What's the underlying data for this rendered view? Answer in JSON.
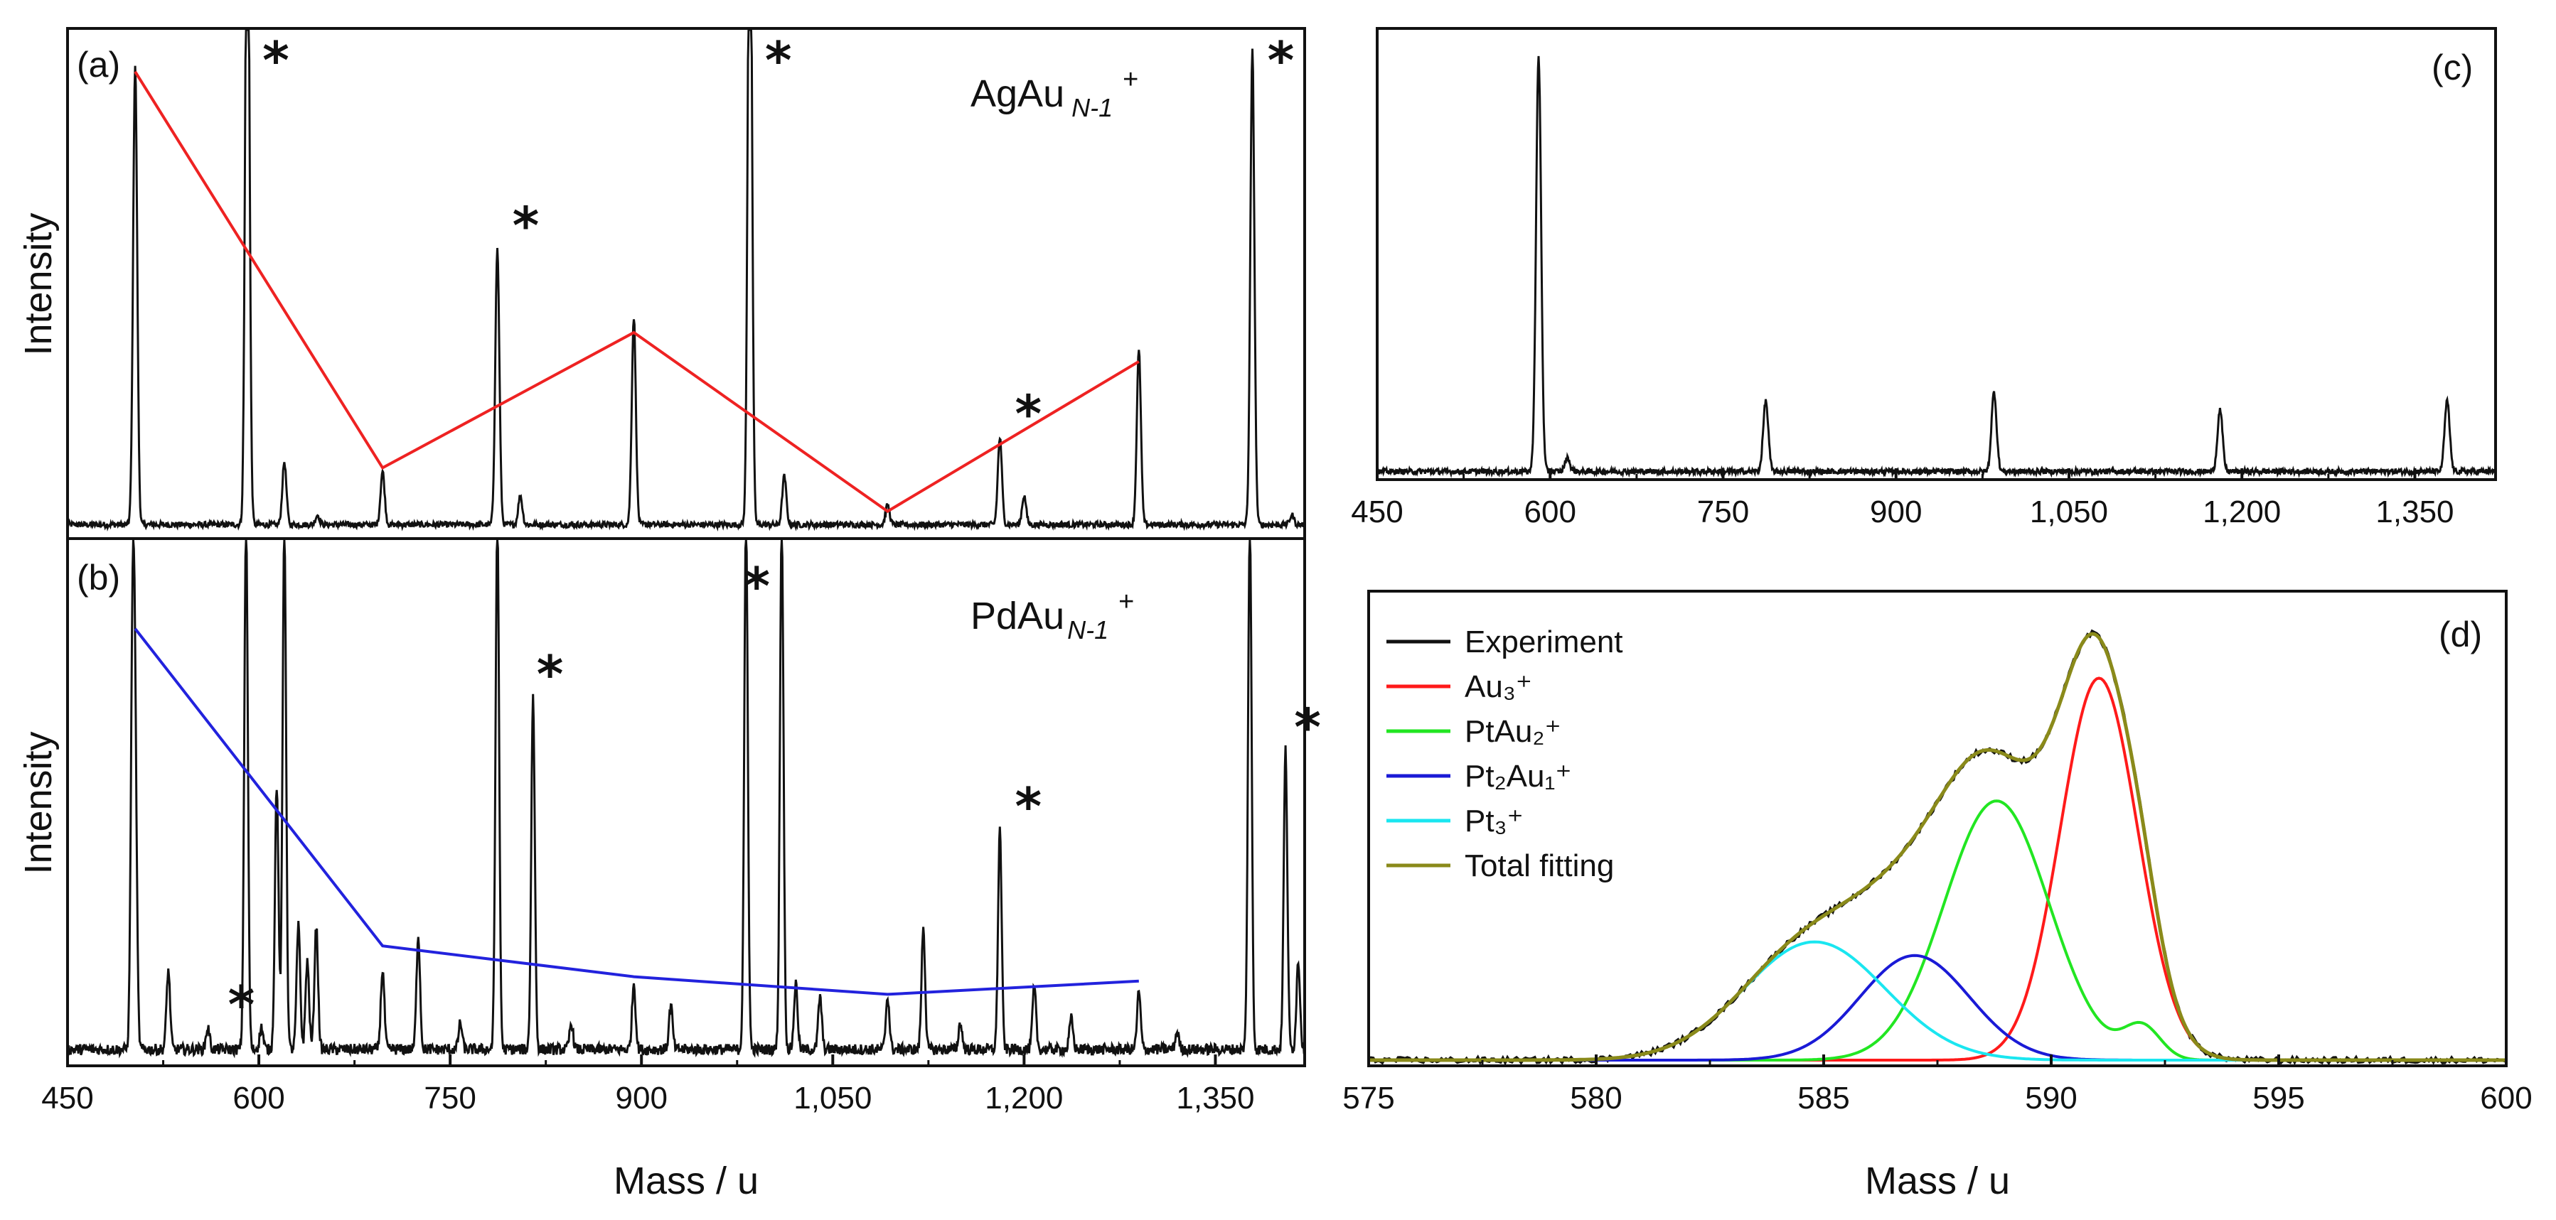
{
  "chart_data": [
    {
      "panel": "(a)",
      "type": "line",
      "title": "AgAu N-1 +",
      "ylabel": "Intensity",
      "xlabel": "",
      "xlim": [
        450,
        1420
      ],
      "ylim": [
        0,
        1
      ],
      "series": [
        {
          "name": "mass spectrum",
          "color": "#111111",
          "peaks": [
            [
              503,
              0.95
            ],
            [
              591,
              1.5
            ],
            [
              620,
              0.13
            ],
            [
              646,
              0.02
            ],
            [
              697,
              0.11
            ],
            [
              787,
              0.57
            ],
            [
              805,
              0.06
            ],
            [
              894,
              0.43
            ],
            [
              985,
              1.5
            ],
            [
              1012,
              0.1
            ],
            [
              1093,
              0.04
            ],
            [
              1181,
              0.18
            ],
            [
              1200,
              0.06
            ],
            [
              1290,
              0.36
            ],
            [
              1379,
              0.98
            ],
            [
              1410,
              0.02
            ]
          ]
        },
        {
          "name": "trend",
          "color": "#ee2222",
          "x": [
            503,
            697,
            894,
            1093,
            1290
          ],
          "y": [
            0.94,
            0.12,
            0.4,
            0.03,
            0.34
          ]
        }
      ],
      "stars": [
        {
          "x": 591,
          "label": "*"
        },
        {
          "x": 787,
          "label": "*"
        },
        {
          "x": 985,
          "label": "*"
        },
        {
          "x": 1181,
          "label": "*"
        },
        {
          "x": 1379,
          "label": "*"
        }
      ]
    },
    {
      "panel": "(b)",
      "type": "line",
      "title": "PdAu N-1 +",
      "ylabel": "Intensity",
      "xlabel": "Mass / u",
      "xlim": [
        450,
        1420
      ],
      "ylim": [
        0,
        1
      ],
      "xticks": [
        "450",
        "600",
        "750",
        "900",
        "1,050",
        "1,200",
        "1,350"
      ],
      "xtick_values": [
        450,
        600,
        750,
        900,
        1050,
        1200,
        1350
      ],
      "series": [
        {
          "name": "mass spectrum",
          "color": "#111111",
          "peaks": [
            [
              501,
              0.88
            ],
            [
              503,
              0.6
            ],
            [
              529,
              0.18
            ],
            [
              560,
              0.05
            ],
            [
              590,
              1.2
            ],
            [
              602,
              0.05
            ],
            [
              614,
              0.6
            ],
            [
              620,
              1.2
            ],
            [
              631,
              0.28
            ],
            [
              638,
              0.2
            ],
            [
              645,
              0.28
            ],
            [
              697,
              0.18
            ],
            [
              725,
              0.26
            ],
            [
              758,
              0.06
            ],
            [
              787,
              1.2
            ],
            [
              815,
              0.8
            ],
            [
              845,
              0.06
            ],
            [
              894,
              0.15
            ],
            [
              923,
              0.1
            ],
            [
              982,
              1.2
            ],
            [
              1010,
              1.2
            ],
            [
              1021,
              0.15
            ],
            [
              1040,
              0.12
            ],
            [
              1093,
              0.12
            ],
            [
              1121,
              0.28
            ],
            [
              1150,
              0.06
            ],
            [
              1181,
              0.5
            ],
            [
              1208,
              0.14
            ],
            [
              1237,
              0.07
            ],
            [
              1290,
              0.13
            ],
            [
              1320,
              0.04
            ],
            [
              1377,
              1.2
            ],
            [
              1405,
              0.68
            ],
            [
              1415,
              0.2
            ]
          ]
        },
        {
          "name": "trend",
          "color": "#2222dd",
          "x": [
            503,
            697,
            894,
            1093,
            1290
          ],
          "y": [
            0.96,
            0.24,
            0.17,
            0.13,
            0.16
          ]
        }
      ],
      "stars": [
        {
          "x": 564,
          "label": "*"
        },
        {
          "x": 806,
          "label": "*"
        },
        {
          "x": 968,
          "label": "*"
        },
        {
          "x": 1181,
          "label": "*"
        },
        {
          "x": 1400,
          "label": "*"
        }
      ]
    },
    {
      "panel": "(c)",
      "type": "line",
      "title": "",
      "ylabel": "",
      "xlabel": "",
      "xlim": [
        450,
        1420
      ],
      "ylim": [
        0,
        1
      ],
      "xticks": [
        "450",
        "600",
        "750",
        "900",
        "1,050",
        "1,200",
        "1,350"
      ],
      "xtick_values": [
        450,
        600,
        750,
        900,
        1050,
        1200,
        1350
      ],
      "series": [
        {
          "name": "mass spectrum",
          "color": "#111111",
          "peaks": [
            [
              590,
              0.94
            ],
            [
              615,
              0.03
            ],
            [
              787,
              0.16
            ],
            [
              985,
              0.18
            ],
            [
              1181,
              0.14
            ],
            [
              1378,
              0.16
            ]
          ]
        }
      ]
    },
    {
      "panel": "(d)",
      "type": "line",
      "title": "",
      "ylabel": "",
      "xlabel": "Mass / u",
      "xlim": [
        575,
        600
      ],
      "ylim": [
        0,
        1
      ],
      "xticks": [
        "575",
        "580",
        "585",
        "590",
        "595",
        "600"
      ],
      "xtick_values": [
        575,
        580,
        585,
        590,
        595,
        600
      ],
      "legend": [
        {
          "label": "Experiment",
          "color": "#111111"
        },
        {
          "label": "Au₃⁺",
          "color": "#ff1a1a"
        },
        {
          "label": "PtAu₂⁺",
          "color": "#22e622"
        },
        {
          "label": "Pt₂Au₁⁺",
          "color": "#1a1ad6"
        },
        {
          "label": "Pt₃⁺",
          "color": "#1ae6f0"
        },
        {
          "label": "Total fitting",
          "color": "#8a8a1a"
        }
      ],
      "components": [
        {
          "name": "Au3+",
          "color": "#ff1a1a",
          "peaks": [
            [
              591.05,
              0.84,
              0.85
            ]
          ]
        },
        {
          "name": "PtAu2+",
          "color": "#22e622",
          "peaks": [
            [
              588.8,
              0.57,
              1.15
            ],
            [
              592.0,
              0.07,
              0.4
            ]
          ]
        },
        {
          "name": "Pt2Au1+",
          "color": "#1a1ad6",
          "peaks": [
            [
              587.0,
              0.23,
              1.2
            ]
          ]
        },
        {
          "name": "Pt3+",
          "color": "#1ae6f0",
          "peaks": [
            [
              584.8,
              0.26,
              1.55
            ]
          ]
        }
      ],
      "legend_position": "top-left"
    }
  ],
  "labels": {
    "panel_a": "(a)",
    "panel_b": "(b)",
    "panel_c": "(c)",
    "panel_d": "(d)",
    "ylabel_a": "Intensity",
    "ylabel_b": "Intensity",
    "xlabel_left": "Mass / u",
    "xlabel_right": "Mass / u",
    "title_a_main": "AgAu",
    "title_a_sub": "N-1",
    "title_a_sup": "+",
    "title_b_main": "PdAu",
    "title_b_sub": "N-1",
    "title_b_sup": "+",
    "star": "*"
  }
}
